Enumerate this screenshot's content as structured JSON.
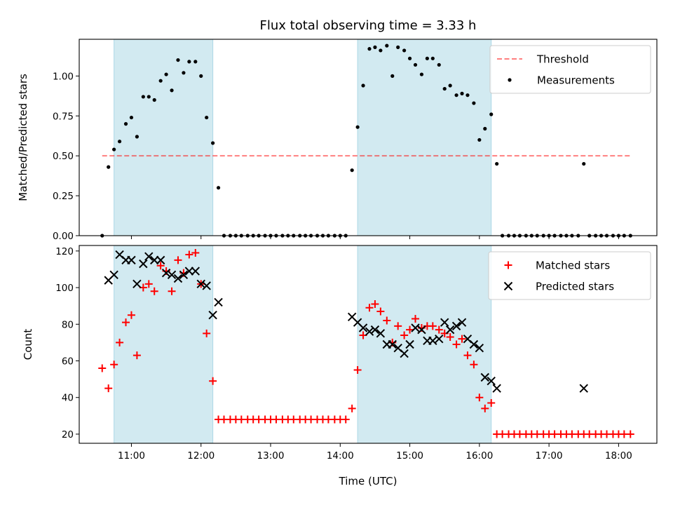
{
  "title": "Flux total observing time = 3.33 h",
  "colors": {
    "shade": "#add8e6",
    "threshold": "#ff0000",
    "measurements": "#000000",
    "matched": "#ff0000",
    "predicted": "#000000"
  },
  "chart_data": [
    {
      "type": "scatter",
      "ylabel": "Matched/Predicted stars",
      "ylim": [
        0,
        1.23
      ],
      "yticks": [
        0.0,
        0.25,
        0.5,
        0.75,
        1.0
      ],
      "ytick_labels": [
        "0.00",
        "0.25",
        "0.50",
        "0.75",
        "1.00"
      ],
      "xlim": [
        10.25,
        18.55
      ],
      "shaded_ranges": [
        [
          10.75,
          12.17
        ],
        [
          14.25,
          16.17
        ]
      ],
      "threshold": {
        "name": "Threshold",
        "y": 0.5,
        "x_range": [
          10.58,
          18.17
        ]
      },
      "legend": {
        "position": "upper right",
        "entries": [
          "Threshold",
          "Measurements"
        ]
      },
      "series": [
        {
          "name": "Measurements",
          "marker": "dot",
          "points": [
            [
              10.58,
              0.0
            ],
            [
              10.67,
              0.43
            ],
            [
              10.75,
              0.54
            ],
            [
              10.83,
              0.59
            ],
            [
              10.92,
              0.7
            ],
            [
              11.0,
              0.74
            ],
            [
              11.08,
              0.62
            ],
            [
              11.17,
              0.87
            ],
            [
              11.25,
              0.87
            ],
            [
              11.33,
              0.85
            ],
            [
              11.42,
              0.97
            ],
            [
              11.5,
              1.01
            ],
            [
              11.58,
              0.91
            ],
            [
              11.67,
              1.1
            ],
            [
              11.75,
              1.02
            ],
            [
              11.83,
              1.09
            ],
            [
              11.92,
              1.09
            ],
            [
              12.0,
              1.0
            ],
            [
              12.08,
              0.74
            ],
            [
              12.17,
              0.58
            ],
            [
              12.25,
              0.3
            ],
            [
              12.33,
              0.0
            ],
            [
              12.42,
              0.0
            ],
            [
              12.5,
              0.0
            ],
            [
              12.58,
              0.0
            ],
            [
              12.67,
              0.0
            ],
            [
              12.75,
              0.0
            ],
            [
              12.83,
              0.0
            ],
            [
              12.92,
              0.0
            ],
            [
              13.0,
              0.0
            ],
            [
              13.08,
              0.0
            ],
            [
              13.17,
              0.0
            ],
            [
              13.25,
              0.0
            ],
            [
              13.33,
              0.0
            ],
            [
              13.42,
              0.0
            ],
            [
              13.5,
              0.0
            ],
            [
              13.58,
              0.0
            ],
            [
              13.67,
              0.0
            ],
            [
              13.75,
              0.0
            ],
            [
              13.83,
              0.0
            ],
            [
              13.92,
              0.0
            ],
            [
              14.0,
              0.0
            ],
            [
              14.08,
              0.0
            ],
            [
              14.17,
              0.41
            ],
            [
              14.25,
              0.68
            ],
            [
              14.33,
              0.94
            ],
            [
              14.42,
              1.17
            ],
            [
              14.5,
              1.18
            ],
            [
              14.58,
              1.16
            ],
            [
              14.67,
              1.19
            ],
            [
              14.75,
              1.0
            ],
            [
              14.83,
              1.18
            ],
            [
              14.92,
              1.16
            ],
            [
              15.0,
              1.11
            ],
            [
              15.08,
              1.07
            ],
            [
              15.17,
              1.01
            ],
            [
              15.25,
              1.11
            ],
            [
              15.33,
              1.11
            ],
            [
              15.42,
              1.07
            ],
            [
              15.5,
              0.92
            ],
            [
              15.58,
              0.94
            ],
            [
              15.67,
              0.88
            ],
            [
              15.75,
              0.89
            ],
            [
              15.83,
              0.88
            ],
            [
              15.92,
              0.83
            ],
            [
              16.0,
              0.6
            ],
            [
              16.08,
              0.67
            ],
            [
              16.17,
              0.76
            ],
            [
              16.25,
              0.45
            ],
            [
              16.33,
              0.0
            ],
            [
              16.42,
              0.0
            ],
            [
              16.5,
              0.0
            ],
            [
              16.58,
              0.0
            ],
            [
              16.67,
              0.0
            ],
            [
              16.75,
              0.0
            ],
            [
              16.83,
              0.0
            ],
            [
              16.92,
              0.0
            ],
            [
              17.0,
              0.0
            ],
            [
              17.08,
              0.0
            ],
            [
              17.17,
              0.0
            ],
            [
              17.25,
              0.0
            ],
            [
              17.33,
              0.0
            ],
            [
              17.42,
              0.0
            ],
            [
              17.5,
              0.45
            ],
            [
              17.58,
              0.0
            ],
            [
              17.67,
              0.0
            ],
            [
              17.75,
              0.0
            ],
            [
              17.83,
              0.0
            ],
            [
              17.92,
              0.0
            ],
            [
              18.0,
              0.0
            ],
            [
              18.08,
              0.0
            ],
            [
              18.17,
              0.0
            ]
          ]
        }
      ]
    },
    {
      "type": "scatter",
      "ylabel": "Count",
      "xlabel": "Time (UTC)",
      "ylim": [
        15,
        123
      ],
      "yticks": [
        20,
        40,
        60,
        80,
        100,
        120
      ],
      "ytick_labels": [
        "20",
        "40",
        "60",
        "80",
        "100",
        "120"
      ],
      "xlim": [
        10.25,
        18.55
      ],
      "xticks": [
        11,
        12,
        13,
        14,
        15,
        16,
        17,
        18
      ],
      "xtick_labels": [
        "11:00",
        "12:00",
        "13:00",
        "14:00",
        "15:00",
        "16:00",
        "17:00",
        "18:00"
      ],
      "shaded_ranges": [
        [
          10.75,
          12.17
        ],
        [
          14.25,
          16.17
        ]
      ],
      "legend": {
        "position": "upper right",
        "entries": [
          "Matched stars",
          "Predicted stars"
        ]
      },
      "series": [
        {
          "name": "Matched stars",
          "marker": "plus",
          "points": [
            [
              10.58,
              56
            ],
            [
              10.67,
              45
            ],
            [
              10.75,
              58
            ],
            [
              10.83,
              70
            ],
            [
              10.92,
              81
            ],
            [
              11.0,
              85
            ],
            [
              11.08,
              63
            ],
            [
              11.17,
              100
            ],
            [
              11.25,
              102
            ],
            [
              11.33,
              98
            ],
            [
              11.42,
              112
            ],
            [
              11.5,
              109
            ],
            [
              11.58,
              98
            ],
            [
              11.67,
              115
            ],
            [
              11.75,
              108
            ],
            [
              11.83,
              118
            ],
            [
              11.92,
              119
            ],
            [
              12.0,
              102
            ],
            [
              12.08,
              75
            ],
            [
              12.17,
              49
            ],
            [
              12.25,
              28
            ],
            [
              12.33,
              28
            ],
            [
              12.42,
              28
            ],
            [
              12.5,
              28
            ],
            [
              12.58,
              28
            ],
            [
              12.67,
              28
            ],
            [
              12.75,
              28
            ],
            [
              12.83,
              28
            ],
            [
              12.92,
              28
            ],
            [
              13.0,
              28
            ],
            [
              13.08,
              28
            ],
            [
              13.17,
              28
            ],
            [
              13.25,
              28
            ],
            [
              13.33,
              28
            ],
            [
              13.42,
              28
            ],
            [
              13.5,
              28
            ],
            [
              13.58,
              28
            ],
            [
              13.67,
              28
            ],
            [
              13.75,
              28
            ],
            [
              13.83,
              28
            ],
            [
              13.92,
              28
            ],
            [
              14.0,
              28
            ],
            [
              14.08,
              28
            ],
            [
              14.17,
              34
            ],
            [
              14.25,
              55
            ],
            [
              14.33,
              74
            ],
            [
              14.42,
              89
            ],
            [
              14.5,
              91
            ],
            [
              14.58,
              87
            ],
            [
              14.67,
              82
            ],
            [
              14.75,
              70
            ],
            [
              14.83,
              79
            ],
            [
              14.92,
              74
            ],
            [
              15.0,
              77
            ],
            [
              15.08,
              83
            ],
            [
              15.17,
              78
            ],
            [
              15.25,
              79
            ],
            [
              15.33,
              79
            ],
            [
              15.42,
              77
            ],
            [
              15.5,
              75
            ],
            [
              15.58,
              73
            ],
            [
              15.67,
              69
            ],
            [
              15.75,
              72
            ],
            [
              15.83,
              63
            ],
            [
              15.92,
              58
            ],
            [
              16.0,
              40
            ],
            [
              16.08,
              34
            ],
            [
              16.17,
              37
            ],
            [
              16.25,
              20
            ],
            [
              16.33,
              20
            ],
            [
              16.42,
              20
            ],
            [
              16.5,
              20
            ],
            [
              16.58,
              20
            ],
            [
              16.67,
              20
            ],
            [
              16.75,
              20
            ],
            [
              16.83,
              20
            ],
            [
              16.92,
              20
            ],
            [
              17.0,
              20
            ],
            [
              17.08,
              20
            ],
            [
              17.17,
              20
            ],
            [
              17.25,
              20
            ],
            [
              17.33,
              20
            ],
            [
              17.42,
              20
            ],
            [
              17.5,
              20
            ],
            [
              17.58,
              20
            ],
            [
              17.67,
              20
            ],
            [
              17.75,
              20
            ],
            [
              17.83,
              20
            ],
            [
              17.92,
              20
            ],
            [
              18.0,
              20
            ],
            [
              18.08,
              20
            ],
            [
              18.17,
              20
            ]
          ]
        },
        {
          "name": "Predicted stars",
          "marker": "x",
          "points": [
            [
              10.67,
              104
            ],
            [
              10.75,
              107
            ],
            [
              10.83,
              118
            ],
            [
              10.92,
              115
            ],
            [
              11.0,
              115
            ],
            [
              11.08,
              102
            ],
            [
              11.17,
              113
            ],
            [
              11.25,
              117
            ],
            [
              11.33,
              115
            ],
            [
              11.42,
              115
            ],
            [
              11.5,
              108
            ],
            [
              11.58,
              107
            ],
            [
              11.67,
              105
            ],
            [
              11.75,
              107
            ],
            [
              11.83,
              109
            ],
            [
              11.92,
              109
            ],
            [
              12.0,
              102
            ],
            [
              12.08,
              101
            ],
            [
              12.17,
              85
            ],
            [
              12.25,
              92
            ],
            [
              14.17,
              84
            ],
            [
              14.25,
              81
            ],
            [
              14.33,
              78
            ],
            [
              14.42,
              76
            ],
            [
              14.5,
              77
            ],
            [
              14.58,
              75
            ],
            [
              14.67,
              69
            ],
            [
              14.75,
              69
            ],
            [
              14.83,
              67
            ],
            [
              14.92,
              64
            ],
            [
              15.0,
              69
            ],
            [
              15.08,
              78
            ],
            [
              15.17,
              77
            ],
            [
              15.25,
              71
            ],
            [
              15.33,
              71
            ],
            [
              15.42,
              72
            ],
            [
              15.5,
              81
            ],
            [
              15.58,
              77
            ],
            [
              15.67,
              79
            ],
            [
              15.75,
              81
            ],
            [
              15.83,
              72
            ],
            [
              15.92,
              69
            ],
            [
              16.0,
              67
            ],
            [
              16.08,
              51
            ],
            [
              16.17,
              49
            ],
            [
              16.25,
              45
            ],
            [
              17.5,
              45
            ]
          ]
        }
      ]
    }
  ]
}
